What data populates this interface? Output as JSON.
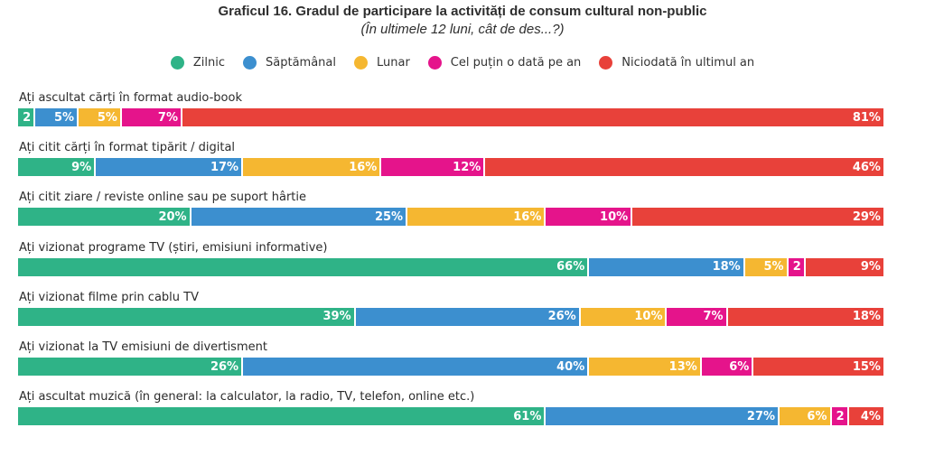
{
  "chart_data": {
    "type": "bar",
    "orientation": "horizontal",
    "stacked": true,
    "title": "Graficul 16. Gradul de participare la activități de consum cultural non-public",
    "subtitle": "(În ultimele 12 luni, cât de des...?)",
    "xlabel": "",
    "ylabel": "",
    "xlim": [
      0,
      100
    ],
    "grid": false,
    "legend_position": "top-center",
    "legend": [
      {
        "name": "Zilnic",
        "color": "#2fb387"
      },
      {
        "name": "Săptămânal",
        "color": "#3c8fcf"
      },
      {
        "name": "Lunar",
        "color": "#f5b731"
      },
      {
        "name": "Cel puțin o dată pe an",
        "color": "#e5148b"
      },
      {
        "name": "Niciodată în ultimul an",
        "color": "#e8413a"
      }
    ],
    "categories": [
      "Ați ascultat cărți în format audio-book",
      "Ați citit cărți în format tipărit / digital",
      "Ați citit ziare / reviste online sau pe suport hârtie",
      "Ați vizionat programe TV (știri, emisiuni informative)",
      "Ați vizionat filme prin cablu TV",
      "Ați vizionat la TV emisiuni de divertisment",
      "Ați ascultat muzică (în general: la calculator, la radio, TV, telefon, online etc.)"
    ],
    "series": [
      {
        "name": "Zilnic",
        "values": [
          2,
          9,
          20,
          66,
          39,
          26,
          61
        ],
        "labels": [
          "2",
          "9%",
          "20%",
          "66%",
          "39%",
          "26%",
          "61%"
        ]
      },
      {
        "name": "Săptămânal",
        "values": [
          5,
          17,
          25,
          18,
          26,
          40,
          27
        ],
        "labels": [
          "5%",
          "17%",
          "25%",
          "18%",
          "26%",
          "40%",
          "27%"
        ]
      },
      {
        "name": "Lunar",
        "values": [
          5,
          16,
          16,
          5,
          10,
          13,
          6
        ],
        "labels": [
          "5%",
          "16%",
          "16%",
          "5%",
          "10%",
          "13%",
          "6%"
        ]
      },
      {
        "name": "Cel puțin o dată pe an",
        "values": [
          7,
          12,
          10,
          2,
          7,
          6,
          2
        ],
        "labels": [
          "7%",
          "12%",
          "10%",
          "2",
          "7%",
          "6%",
          "2"
        ]
      },
      {
        "name": "Niciodată în ultimul an",
        "values": [
          81,
          46,
          29,
          9,
          18,
          15,
          4
        ],
        "labels": [
          "81%",
          "46%",
          "29%",
          "9%",
          "18%",
          "15%",
          "4%"
        ]
      }
    ]
  }
}
